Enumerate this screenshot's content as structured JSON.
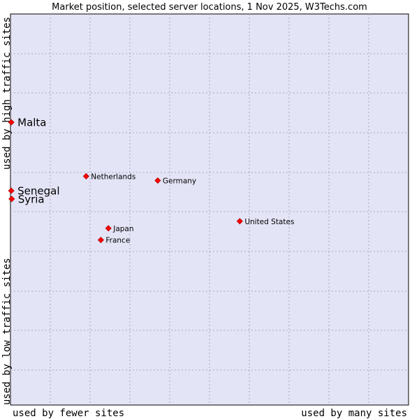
{
  "chart_data": {
    "type": "scatter",
    "title": "Market position, selected server locations, 1 Nov 2025, W3Techs.com",
    "xlabel_low": "used by fewer sites",
    "xlabel_high": "used by many sites",
    "ylabel_low": "used by low traffic sites",
    "ylabel_high": "used by high traffic sites",
    "xlim": [
      0,
      100
    ],
    "ylim": [
      0,
      100
    ],
    "grid": true,
    "background_color": "#e4e4f7",
    "marker_color": "#ff0000",
    "points": [
      {
        "label": "Malta",
        "x": 0.2,
        "y": 72.3,
        "emphasis": true
      },
      {
        "label": "Senegal",
        "x": 0.2,
        "y": 54.8,
        "emphasis": true
      },
      {
        "label": "Syria",
        "x": 0.3,
        "y": 52.7,
        "emphasis": true
      },
      {
        "label": "Netherlands",
        "x": 19.0,
        "y": 58.5,
        "emphasis": false
      },
      {
        "label": "Germany",
        "x": 37.0,
        "y": 57.4,
        "emphasis": false
      },
      {
        "label": "United States",
        "x": 57.6,
        "y": 47.0,
        "emphasis": false
      },
      {
        "label": "Japan",
        "x": 24.6,
        "y": 45.2,
        "emphasis": false
      },
      {
        "label": "France",
        "x": 22.7,
        "y": 42.2,
        "emphasis": false
      }
    ]
  }
}
